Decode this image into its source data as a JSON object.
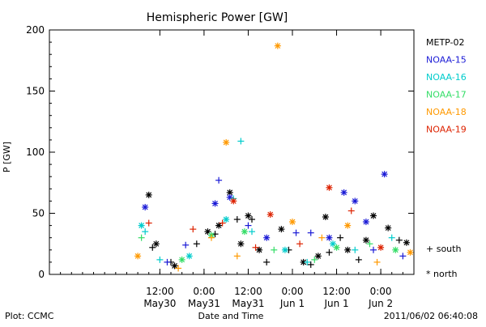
{
  "chart_data": {
    "type": "scatter",
    "title": "Hemispheric Power [GW]",
    "ylabel": "P [GW]",
    "xlabel": "Date and Time",
    "ylim": [
      0,
      200
    ],
    "xlim": [
      "2011-05-29T06:00",
      "2011-06-02T09:00"
    ],
    "yticks": [
      0,
      50,
      100,
      150,
      200
    ],
    "xticks": [
      {
        "t": "2011-05-30T12:00",
        "label": "12:00",
        "sublabel": "May30"
      },
      {
        "t": "2011-05-31T00:00",
        "label": "0:00",
        "sublabel": "May31"
      },
      {
        "t": "2011-05-31T12:00",
        "label": "12:00",
        "sublabel": "May31"
      },
      {
        "t": "2011-06-01T00:00",
        "label": "0:00",
        "sublabel": "Jun 1"
      },
      {
        "t": "2011-06-01T12:00",
        "label": "12:00",
        "sublabel": "Jun 1"
      },
      {
        "t": "2011-06-02T00:00",
        "label": "0:00",
        "sublabel": "Jun 2"
      }
    ],
    "grid": false,
    "legend_placement": "right",
    "marker_legend": {
      "south": "+ south",
      "north": "* north"
    },
    "series": [
      {
        "name": "METP-02",
        "color": "#000000",
        "points": [
          {
            "t": "2011-05-30T09:00",
            "y": 65,
            "m": "north"
          },
          {
            "t": "2011-05-30T10:00",
            "y": 22,
            "m": "south"
          },
          {
            "t": "2011-05-30T11:00",
            "y": 25,
            "m": "north"
          },
          {
            "t": "2011-05-30T15:00",
            "y": 10,
            "m": "south"
          },
          {
            "t": "2011-05-30T16:00",
            "y": 7,
            "m": "north"
          },
          {
            "t": "2011-05-30T22:00",
            "y": 25,
            "m": "south"
          },
          {
            "t": "2011-05-31T01:00",
            "y": 35,
            "m": "north"
          },
          {
            "t": "2011-05-31T03:00",
            "y": 33,
            "m": "south"
          },
          {
            "t": "2011-05-31T04:00",
            "y": 40,
            "m": "north"
          },
          {
            "t": "2011-05-31T07:00",
            "y": 67,
            "m": "north"
          },
          {
            "t": "2011-05-31T09:00",
            "y": 45,
            "m": "south"
          },
          {
            "t": "2011-05-31T10:00",
            "y": 25,
            "m": "north"
          },
          {
            "t": "2011-05-31T12:00",
            "y": 48,
            "m": "north"
          },
          {
            "t": "2011-05-31T13:00",
            "y": 45,
            "m": "south"
          },
          {
            "t": "2011-05-31T15:00",
            "y": 20,
            "m": "north"
          },
          {
            "t": "2011-05-31T17:00",
            "y": 10,
            "m": "south"
          },
          {
            "t": "2011-05-31T21:00",
            "y": 37,
            "m": "north"
          },
          {
            "t": "2011-05-31T23:00",
            "y": 20,
            "m": "south"
          },
          {
            "t": "2011-06-01T03:00",
            "y": 10,
            "m": "north"
          },
          {
            "t": "2011-06-01T05:00",
            "y": 8,
            "m": "south"
          },
          {
            "t": "2011-06-01T07:00",
            "y": 15,
            "m": "north"
          },
          {
            "t": "2011-06-01T09:00",
            "y": 47,
            "m": "north"
          },
          {
            "t": "2011-06-01T10:00",
            "y": 18,
            "m": "south"
          },
          {
            "t": "2011-06-01T13:00",
            "y": 30,
            "m": "south"
          },
          {
            "t": "2011-06-01T15:00",
            "y": 20,
            "m": "north"
          },
          {
            "t": "2011-06-01T18:00",
            "y": 12,
            "m": "south"
          },
          {
            "t": "2011-06-01T20:00",
            "y": 28,
            "m": "north"
          },
          {
            "t": "2011-06-01T22:00",
            "y": 48,
            "m": "north"
          },
          {
            "t": "2011-06-02T02:00",
            "y": 38,
            "m": "north"
          },
          {
            "t": "2011-06-02T05:00",
            "y": 28,
            "m": "south"
          },
          {
            "t": "2011-06-02T07:00",
            "y": 26,
            "m": "north"
          }
        ]
      },
      {
        "name": "NOAA-15",
        "color": "#1a1ad6",
        "points": [
          {
            "t": "2011-05-30T08:00",
            "y": 55,
            "m": "north"
          },
          {
            "t": "2011-05-30T14:00",
            "y": 10,
            "m": "south"
          },
          {
            "t": "2011-05-30T19:00",
            "y": 24,
            "m": "south"
          },
          {
            "t": "2011-05-31T03:00",
            "y": 58,
            "m": "north"
          },
          {
            "t": "2011-05-31T04:00",
            "y": 77,
            "m": "south"
          },
          {
            "t": "2011-05-31T07:00",
            "y": 63,
            "m": "north"
          },
          {
            "t": "2011-05-31T12:00",
            "y": 40,
            "m": "south"
          },
          {
            "t": "2011-05-31T17:00",
            "y": 30,
            "m": "north"
          },
          {
            "t": "2011-06-01T01:00",
            "y": 34,
            "m": "south"
          },
          {
            "t": "2011-06-01T05:00",
            "y": 34,
            "m": "south"
          },
          {
            "t": "2011-06-01T10:00",
            "y": 30,
            "m": "north"
          },
          {
            "t": "2011-06-01T14:00",
            "y": 67,
            "m": "north"
          },
          {
            "t": "2011-06-01T17:00",
            "y": 60,
            "m": "north"
          },
          {
            "t": "2011-06-01T20:00",
            "y": 43,
            "m": "north"
          },
          {
            "t": "2011-06-01T22:00",
            "y": 20,
            "m": "south"
          },
          {
            "t": "2011-06-02T01:00",
            "y": 82,
            "m": "north"
          },
          {
            "t": "2011-06-02T06:00",
            "y": 15,
            "m": "south"
          }
        ]
      },
      {
        "name": "NOAA-16",
        "color": "#00cccc",
        "points": [
          {
            "t": "2011-05-30T07:00",
            "y": 40,
            "m": "north"
          },
          {
            "t": "2011-05-30T08:00",
            "y": 35,
            "m": "south"
          },
          {
            "t": "2011-05-30T12:00",
            "y": 12,
            "m": "south"
          },
          {
            "t": "2011-05-30T20:00",
            "y": 15,
            "m": "north"
          },
          {
            "t": "2011-05-31T06:00",
            "y": 45,
            "m": "north"
          },
          {
            "t": "2011-05-31T08:00",
            "y": 62,
            "m": "south"
          },
          {
            "t": "2011-05-31T10:00",
            "y": 109,
            "m": "south"
          },
          {
            "t": "2011-05-31T13:00",
            "y": 35,
            "m": "south"
          },
          {
            "t": "2011-05-31T22:00",
            "y": 20,
            "m": "north"
          },
          {
            "t": "2011-06-01T04:00",
            "y": 10,
            "m": "south"
          },
          {
            "t": "2011-06-01T11:00",
            "y": 25,
            "m": "north"
          },
          {
            "t": "2011-06-01T17:00",
            "y": 20,
            "m": "south"
          },
          {
            "t": "2011-06-02T03:00",
            "y": 30,
            "m": "south"
          }
        ]
      },
      {
        "name": "NOAA-17",
        "color": "#33dd66",
        "points": [
          {
            "t": "2011-05-30T07:00",
            "y": 30,
            "m": "south"
          },
          {
            "t": "2011-05-30T18:00",
            "y": 12,
            "m": "north"
          },
          {
            "t": "2011-05-31T02:00",
            "y": 32,
            "m": "north"
          },
          {
            "t": "2011-05-31T11:00",
            "y": 35,
            "m": "north"
          },
          {
            "t": "2011-05-31T19:00",
            "y": 20,
            "m": "south"
          },
          {
            "t": "2011-06-01T06:00",
            "y": 12,
            "m": "south"
          },
          {
            "t": "2011-06-01T12:00",
            "y": 22,
            "m": "north"
          },
          {
            "t": "2011-06-01T21:00",
            "y": 25,
            "m": "south"
          },
          {
            "t": "2011-06-02T04:00",
            "y": 20,
            "m": "north"
          }
        ]
      },
      {
        "name": "NOAA-18",
        "color": "#ff9900",
        "points": [
          {
            "t": "2011-05-30T06:00",
            "y": 15,
            "m": "north"
          },
          {
            "t": "2011-05-30T17:00",
            "y": 5,
            "m": "south"
          },
          {
            "t": "2011-05-31T02:00",
            "y": 30,
            "m": "south"
          },
          {
            "t": "2011-05-31T06:00",
            "y": 108,
            "m": "north"
          },
          {
            "t": "2011-05-31T09:00",
            "y": 15,
            "m": "south"
          },
          {
            "t": "2011-05-31T20:00",
            "y": 187,
            "m": "north"
          },
          {
            "t": "2011-06-01T00:00",
            "y": 43,
            "m": "north"
          },
          {
            "t": "2011-06-01T08:00",
            "y": 30,
            "m": "south"
          },
          {
            "t": "2011-06-01T15:00",
            "y": 40,
            "m": "north"
          },
          {
            "t": "2011-06-01T23:00",
            "y": 10,
            "m": "south"
          },
          {
            "t": "2011-06-02T08:00",
            "y": 18,
            "m": "north"
          }
        ]
      },
      {
        "name": "NOAA-19",
        "color": "#dd2200",
        "points": [
          {
            "t": "2011-05-30T09:00",
            "y": 42,
            "m": "south"
          },
          {
            "t": "2011-05-30T21:00",
            "y": 37,
            "m": "south"
          },
          {
            "t": "2011-05-31T05:00",
            "y": 42,
            "m": "south"
          },
          {
            "t": "2011-05-31T08:00",
            "y": 60,
            "m": "north"
          },
          {
            "t": "2011-05-31T14:00",
            "y": 22,
            "m": "south"
          },
          {
            "t": "2011-05-31T18:00",
            "y": 49,
            "m": "north"
          },
          {
            "t": "2011-06-01T02:00",
            "y": 25,
            "m": "south"
          },
          {
            "t": "2011-06-01T10:00",
            "y": 71,
            "m": "north"
          },
          {
            "t": "2011-06-01T16:00",
            "y": 52,
            "m": "south"
          },
          {
            "t": "2011-06-02T00:00",
            "y": 22,
            "m": "north"
          }
        ]
      }
    ]
  },
  "footer": {
    "plot_credit": "Plot: CCMC",
    "timestamp": "2011/06/02 06:40:08"
  }
}
